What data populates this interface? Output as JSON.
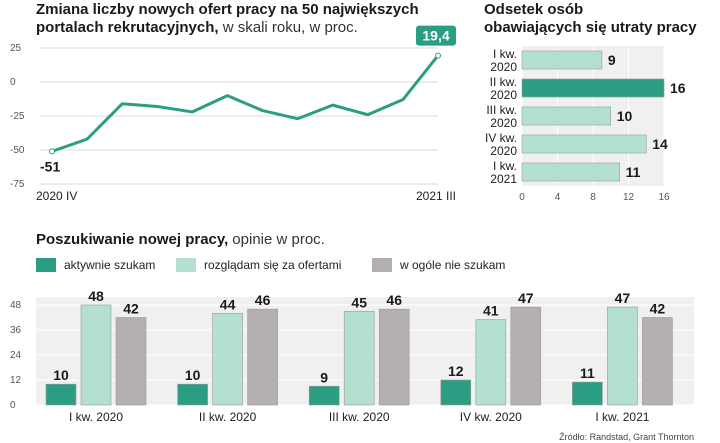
{
  "colors": {
    "dark": "#2a9d82",
    "light": "#b3e0cf",
    "gray": "#b4b0b2",
    "grid": "#d9d9d9",
    "panel": "#f0f0f0"
  },
  "source": "Źródło: Randstad, Grant Thornton",
  "chart_data": [
    {
      "type": "line",
      "title": "Zmiana liczby nowych ofert pracy na 50 największych portalach rekrutacyjnych,",
      "subtitle": "w skali roku, w proc.",
      "ylim": [
        -75,
        25
      ],
      "yticks": [
        25,
        0,
        -25,
        -50,
        -75
      ],
      "x_label_start": "2020 IV",
      "x_label_end": "2021 III",
      "values": [
        -51,
        -42,
        -16,
        -18,
        -22,
        -10,
        -21,
        -27,
        -17,
        -24,
        -13,
        19.4
      ],
      "first_label": "-51",
      "last_label": "19,4"
    },
    {
      "type": "bar",
      "orientation": "horizontal",
      "title_line1": "Odsetek osób",
      "title_line2": "obawiających się utraty pracy",
      "categories": [
        [
          "I kw.",
          "2020"
        ],
        [
          "II kw.",
          "2020"
        ],
        [
          "III kw.",
          "2020"
        ],
        [
          "IV kw.",
          "2020"
        ],
        [
          "I kw.",
          "2021"
        ]
      ],
      "values": [
        9,
        16,
        10,
        14,
        11
      ],
      "xticks": [
        0,
        4,
        8,
        12,
        16
      ],
      "xlim": [
        0,
        16
      ]
    },
    {
      "type": "bar",
      "title": "Poszukiwanie nowej pracy,",
      "subtitle": "opinie w proc.",
      "categories": [
        "I kw. 2020",
        "II kw. 2020",
        "III kw. 2020",
        "IV kw. 2020",
        "I kw. 2021"
      ],
      "series": [
        {
          "name": "aktywnie szukam",
          "color": "#2a9d82",
          "values": [
            10,
            10,
            9,
            12,
            11
          ]
        },
        {
          "name": "rozglądam się za ofertami",
          "color": "#b3e0cf",
          "values": [
            48,
            44,
            45,
            41,
            47
          ]
        },
        {
          "name": "w ogóle nie szukam",
          "color": "#b4b0b2",
          "values": [
            42,
            46,
            46,
            47,
            42
          ]
        }
      ],
      "ylim": [
        0,
        48
      ],
      "yticks": [
        48,
        36,
        24,
        12,
        0
      ]
    }
  ]
}
